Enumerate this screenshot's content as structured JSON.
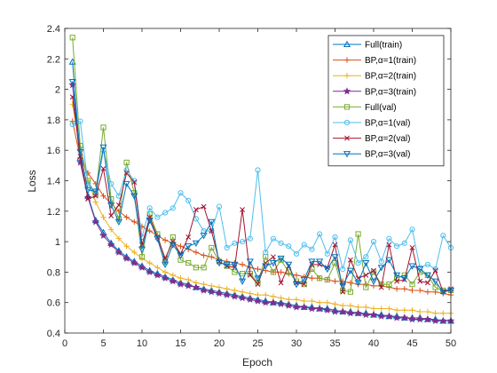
{
  "chart_data": {
    "type": "line",
    "xlabel": "Epoch",
    "ylabel": "Loss",
    "xlim": [
      0,
      50
    ],
    "ylim": [
      0.4,
      2.4
    ],
    "xticks": [
      0,
      5,
      10,
      15,
      20,
      25,
      30,
      35,
      40,
      45,
      50
    ],
    "yticks": [
      0.4,
      0.6,
      0.8,
      1,
      1.2,
      1.4,
      1.6,
      1.8,
      2,
      2.2,
      2.4
    ],
    "grid": false,
    "legend_position": "top-right",
    "x": [
      1,
      2,
      3,
      4,
      5,
      6,
      7,
      8,
      9,
      10,
      11,
      12,
      13,
      14,
      15,
      16,
      17,
      18,
      19,
      20,
      21,
      22,
      23,
      24,
      25,
      26,
      27,
      28,
      29,
      30,
      31,
      32,
      33,
      34,
      35,
      36,
      37,
      38,
      39,
      40,
      41,
      42,
      43,
      44,
      45,
      46,
      47,
      48,
      49,
      50
    ],
    "series": [
      {
        "name": "Full(train)",
        "display": "Full(train)",
        "color": "#0072BD",
        "marker": "triangle-up",
        "values": [
          2.18,
          1.55,
          1.3,
          1.14,
          1.06,
          0.99,
          0.94,
          0.9,
          0.87,
          0.84,
          0.81,
          0.79,
          0.77,
          0.75,
          0.73,
          0.72,
          0.7,
          0.69,
          0.68,
          0.67,
          0.66,
          0.65,
          0.64,
          0.63,
          0.62,
          0.61,
          0.6,
          0.6,
          0.59,
          0.58,
          0.57,
          0.57,
          0.56,
          0.56,
          0.55,
          0.54,
          0.54,
          0.53,
          0.53,
          0.52,
          0.52,
          0.51,
          0.51,
          0.5,
          0.5,
          0.5,
          0.49,
          0.49,
          0.48,
          0.48
        ]
      },
      {
        "name": "BP,alpha=1(train)",
        "display": "BP,α=1(train)",
        "color": "#D95319",
        "marker": "plus",
        "values": [
          1.79,
          1.55,
          1.45,
          1.38,
          1.3,
          1.25,
          1.2,
          1.16,
          1.13,
          1.1,
          1.07,
          1.04,
          1.01,
          0.99,
          0.97,
          0.95,
          0.93,
          0.91,
          0.9,
          0.88,
          0.87,
          0.86,
          0.85,
          0.83,
          0.82,
          0.81,
          0.8,
          0.8,
          0.79,
          0.78,
          0.77,
          0.76,
          0.76,
          0.75,
          0.74,
          0.74,
          0.73,
          0.72,
          0.72,
          0.71,
          0.71,
          0.7,
          0.69,
          0.69,
          0.68,
          0.68,
          0.67,
          0.67,
          0.66,
          0.65
        ]
      },
      {
        "name": "BP,alpha=2(train)",
        "display": "BP,α=2(train)",
        "color": "#EDB120",
        "marker": "plus",
        "values": [
          1.9,
          1.62,
          1.4,
          1.26,
          1.16,
          1.08,
          1.02,
          0.97,
          0.93,
          0.89,
          0.86,
          0.83,
          0.8,
          0.78,
          0.76,
          0.75,
          0.73,
          0.72,
          0.71,
          0.7,
          0.69,
          0.68,
          0.67,
          0.66,
          0.65,
          0.65,
          0.64,
          0.63,
          0.62,
          0.62,
          0.61,
          0.61,
          0.6,
          0.6,
          0.59,
          0.58,
          0.58,
          0.57,
          0.57,
          0.56,
          0.56,
          0.56,
          0.55,
          0.55,
          0.55,
          0.54,
          0.54,
          0.53,
          0.53,
          0.53
        ]
      },
      {
        "name": "BP,alpha=3(train)",
        "display": "BP,α=3(train)",
        "color": "#7E2F8E",
        "marker": "star",
        "values": [
          2.03,
          1.52,
          1.29,
          1.13,
          1.04,
          0.98,
          0.93,
          0.89,
          0.86,
          0.83,
          0.8,
          0.78,
          0.76,
          0.74,
          0.72,
          0.71,
          0.7,
          0.68,
          0.67,
          0.66,
          0.65,
          0.64,
          0.63,
          0.62,
          0.61,
          0.6,
          0.6,
          0.59,
          0.58,
          0.57,
          0.57,
          0.56,
          0.56,
          0.55,
          0.54,
          0.54,
          0.53,
          0.53,
          0.52,
          0.52,
          0.51,
          0.51,
          0.5,
          0.5,
          0.49,
          0.49,
          0.49,
          0.48,
          0.48,
          0.48
        ]
      },
      {
        "name": "Full(val)",
        "display": "Full(val)",
        "color": "#77AC30",
        "marker": "square",
        "values": [
          2.34,
          1.63,
          1.4,
          1.31,
          1.75,
          1.28,
          1.15,
          1.52,
          1.32,
          0.9,
          1.18,
          1.05,
          0.87,
          1.03,
          0.88,
          0.86,
          0.83,
          0.83,
          0.96,
          0.87,
          0.84,
          0.8,
          0.79,
          0.79,
          0.73,
          0.9,
          0.8,
          0.88,
          0.8,
          0.74,
          0.72,
          0.82,
          0.76,
          0.75,
          0.86,
          0.68,
          0.67,
          1.05,
          0.7,
          0.8,
          0.72,
          0.72,
          0.76,
          0.78,
          0.72,
          0.8,
          0.78,
          0.7,
          0.68,
          0.68
        ]
      },
      {
        "name": "BP,alpha=1(val)",
        "display": "BP,α=1(val)",
        "color": "#4DBEEE",
        "marker": "circle",
        "values": [
          1.77,
          1.79,
          1.38,
          1.31,
          1.6,
          1.38,
          1.3,
          1.47,
          1.4,
          1.03,
          1.22,
          1.16,
          1.19,
          1.22,
          1.32,
          1.27,
          1.15,
          1.07,
          1.07,
          1.23,
          0.96,
          0.99,
          1.0,
          1.02,
          1.47,
          0.93,
          1.02,
          0.99,
          0.97,
          0.92,
          0.98,
          0.95,
          1.05,
          0.92,
          1.03,
          0.82,
          1.01,
          0.86,
          0.9,
          1.0,
          0.87,
          1.02,
          0.97,
          0.99,
          1.08,
          0.83,
          0.85,
          0.82,
          1.04,
          0.96
        ]
      },
      {
        "name": "BP,alpha=2(val)",
        "display": "BP,α=2(val)",
        "color": "#A2142F",
        "marker": "x",
        "values": [
          1.95,
          1.56,
          1.28,
          1.3,
          1.48,
          1.17,
          1.24,
          1.45,
          1.39,
          0.98,
          1.16,
          1.03,
          0.89,
          1.0,
          0.92,
          1.03,
          1.21,
          1.23,
          1.07,
          0.87,
          0.84,
          0.83,
          1.21,
          0.78,
          0.72,
          0.86,
          0.9,
          0.73,
          0.84,
          0.73,
          0.72,
          0.85,
          0.85,
          0.83,
          0.98,
          0.67,
          0.88,
          0.76,
          0.78,
          0.81,
          0.7,
          0.98,
          0.74,
          0.75,
          0.96,
          0.74,
          0.73,
          0.81,
          0.67,
          0.69
        ]
      },
      {
        "name": "BP,alpha=3(val)",
        "display": "BP,α=3(val)",
        "color": "#0072BD",
        "marker": "triangle-down",
        "values": [
          2.05,
          1.59,
          1.34,
          1.33,
          1.62,
          1.24,
          1.13,
          1.38,
          1.3,
          0.95,
          1.14,
          1.02,
          0.85,
          0.98,
          0.91,
          0.97,
          0.99,
          1.04,
          1.13,
          0.86,
          0.85,
          0.85,
          0.74,
          0.87,
          0.76,
          0.84,
          0.86,
          0.89,
          0.85,
          0.72,
          0.75,
          0.87,
          0.87,
          0.82,
          0.9,
          0.71,
          0.81,
          0.73,
          0.86,
          0.74,
          0.83,
          0.88,
          0.78,
          0.76,
          0.84,
          0.82,
          0.78,
          0.74,
          0.67,
          0.68
        ]
      }
    ]
  }
}
